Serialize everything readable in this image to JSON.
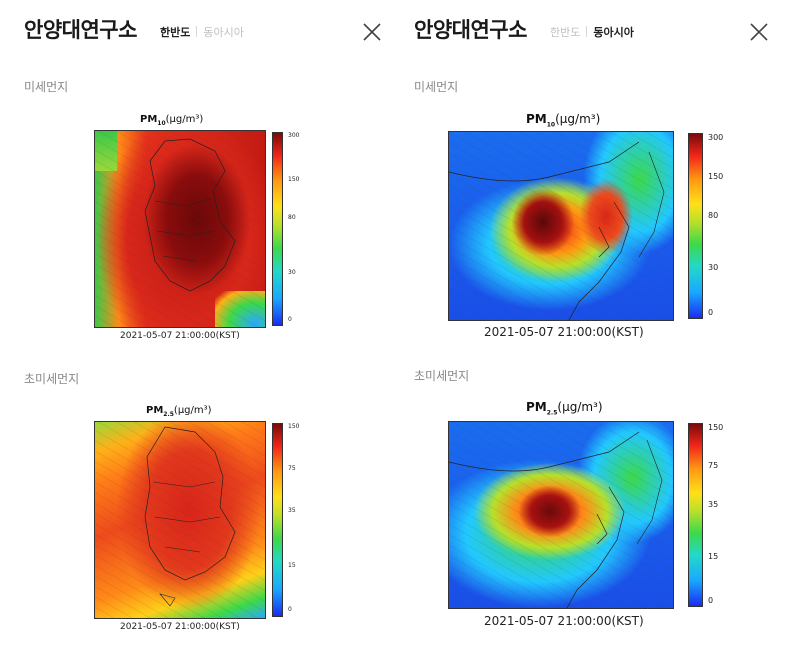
{
  "left": {
    "title": "안양대연구소",
    "tabs": [
      {
        "label": "한반도",
        "active": true
      },
      {
        "label": "동아시아",
        "active": false
      }
    ],
    "close_icon": "close-icon",
    "sections": [
      {
        "label": "미세먼지",
        "map_title_main": "PM",
        "map_title_sub": "10",
        "map_title_unit": "(μg/m³)",
        "colorbar_ticks": [
          "300",
          "150",
          "80",
          "30",
          "0"
        ],
        "timestamp": "2021-05-07 21:00:00(KST)"
      },
      {
        "label": "초미세먼지",
        "map_title_main": "PM",
        "map_title_sub": "2.5",
        "map_title_unit": "(μg/m³)",
        "colorbar_ticks": [
          "150",
          "75",
          "35",
          "15",
          "0"
        ],
        "timestamp": "2021-05-07 21:00:00(KST)"
      }
    ]
  },
  "right": {
    "title": "안양대연구소",
    "tabs": [
      {
        "label": "한반도",
        "active": false
      },
      {
        "label": "동아시아",
        "active": true
      }
    ],
    "close_icon": "close-icon",
    "sections": [
      {
        "label": "미세먼지",
        "map_title_main": "PM",
        "map_title_sub": "10",
        "map_title_unit": "(μg/m³)",
        "colorbar_ticks": [
          "300",
          "150",
          "80",
          "30",
          "0"
        ],
        "timestamp": "2021-05-07 21:00:00(KST)"
      },
      {
        "label": "초미세먼지",
        "map_title_main": "PM",
        "map_title_sub": "2.5",
        "map_title_unit": "(μg/m³)",
        "colorbar_ticks": [
          "150",
          "75",
          "35",
          "15",
          "0"
        ],
        "timestamp": "2021-05-07 21:00:00(KST)"
      }
    ]
  }
}
